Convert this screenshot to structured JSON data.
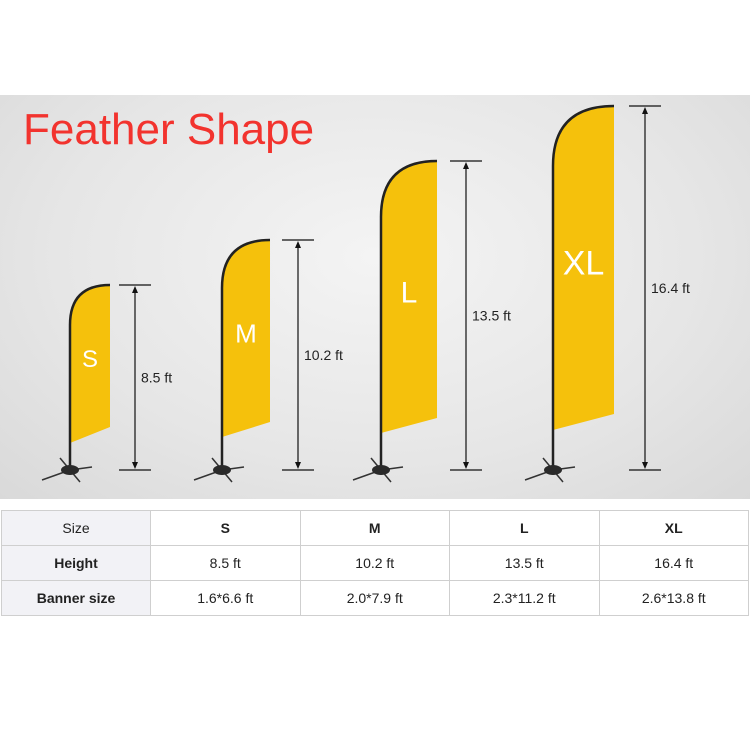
{
  "title": "Feather Shape",
  "colors": {
    "flag": "#f5c10c",
    "title": "#f2332e",
    "pole": "#222222"
  },
  "flags": [
    {
      "size": "S",
      "height": "8.5 ft"
    },
    {
      "size": "M",
      "height": "10.2 ft"
    },
    {
      "size": "L",
      "height": "13.5 ft"
    },
    {
      "size": "XL",
      "height": "16.4 ft"
    }
  ],
  "table": {
    "rows": [
      [
        "Size",
        "S",
        "M",
        "L",
        "XL"
      ],
      [
        "Height",
        "8.5 ft",
        "10.2 ft",
        "13.5 ft",
        "16.4 ft"
      ],
      [
        "Banner size",
        "1.6*6.6 ft",
        "2.0*7.9 ft",
        "2.3*11.2 ft",
        "2.6*13.8 ft"
      ]
    ]
  }
}
